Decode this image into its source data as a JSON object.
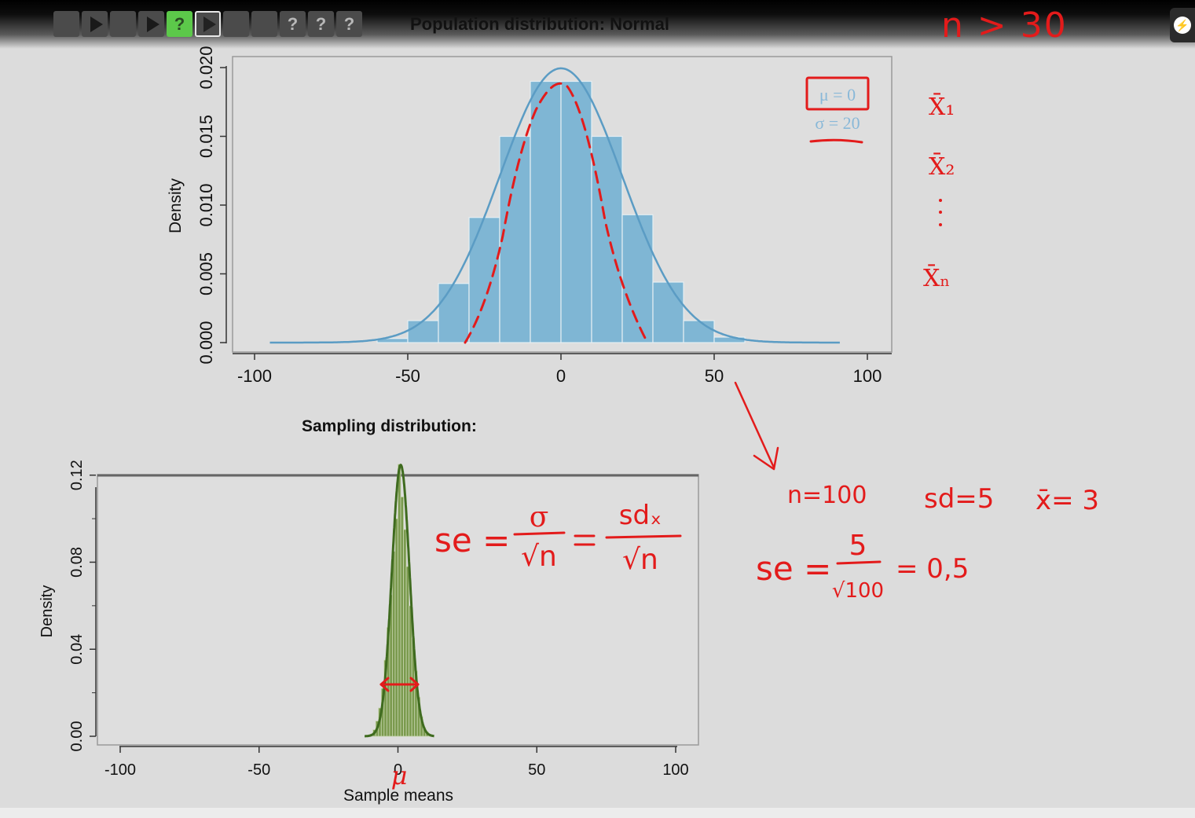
{
  "title": "Population distribution: Normal",
  "toolbar": {
    "buttons": [
      {
        "icon": "blank-icon"
      },
      {
        "icon": "play-icon"
      },
      {
        "icon": "blank-icon"
      },
      {
        "icon": "play-icon"
      },
      {
        "icon": "help-icon",
        "label": "?",
        "state": "active-green"
      },
      {
        "icon": "play-icon",
        "state": "outlined"
      },
      {
        "icon": "blank-icon"
      },
      {
        "icon": "blank-icon"
      },
      {
        "icon": "help-icon",
        "label": "?"
      },
      {
        "icon": "help-icon",
        "label": "?"
      },
      {
        "icon": "help-icon",
        "label": "?"
      }
    ]
  },
  "colors": {
    "population_bars": "#7fb6d4",
    "population_curve": "#5b9cc4",
    "sampling_bars": "#7a9a4e",
    "sampling_curve": "#3f6b1f",
    "annotation": "#e31b1b",
    "background": "#dcdcdc"
  },
  "sampling_title": "Sampling distribution:",
  "chart_data": [
    {
      "type": "bar",
      "title": "Population distribution: Normal",
      "xlabel": "",
      "ylabel": "Density",
      "xlim": [
        -100,
        100
      ],
      "ylim": [
        0,
        0.02
      ],
      "x_ticks": [
        "-100",
        "-50",
        "0",
        "50",
        "100"
      ],
      "y_ticks": [
        "0.000",
        "0.005",
        "0.010",
        "0.015",
        "0.020"
      ],
      "bin_edges": [
        -60,
        -50,
        -40,
        -30,
        -20,
        -10,
        0,
        10,
        20,
        30,
        40,
        50,
        60
      ],
      "values": [
        0.0003,
        0.0016,
        0.0043,
        0.0091,
        0.015,
        0.019,
        0.019,
        0.015,
        0.0093,
        0.0044,
        0.0016,
        0.0004
      ],
      "density_curve": {
        "mean": 0,
        "sd": 20
      },
      "legend": [
        "μ = 0",
        "σ = 20"
      ]
    },
    {
      "type": "bar",
      "title": "",
      "xlabel": "Sample means",
      "ylabel": "Density",
      "xlim": [
        -100,
        100
      ],
      "ylim": [
        0,
        0.13
      ],
      "x_ticks": [
        "-100",
        "-50",
        "0",
        "50",
        "100"
      ],
      "y_ticks": [
        "0.00",
        "0.04",
        "0.08",
        "0.12"
      ],
      "bin_edges": [
        -10,
        -9,
        -8,
        -7,
        -6,
        -5,
        -4,
        -3,
        -2,
        -1,
        0,
        1,
        2,
        3,
        4,
        5,
        6,
        7,
        8,
        9,
        10,
        11,
        12
      ],
      "values": [
        0.001,
        0.003,
        0.007,
        0.013,
        0.022,
        0.035,
        0.05,
        0.065,
        0.085,
        0.1,
        0.125,
        0.11,
        0.095,
        0.078,
        0.06,
        0.045,
        0.03,
        0.018,
        0.009,
        0.004,
        0.002,
        0.001
      ],
      "density_curve": {
        "mean": 1,
        "sd": 3.2
      }
    }
  ],
  "handwriting": {
    "n_condition": "n > 30",
    "xbar1": "X̄₁",
    "xbar2": "X̄₂",
    "xbar_n": "X̄ₙ",
    "n_value": "n=100",
    "sd_value": "sd=5",
    "xbar_value": "x̄= 3",
    "se_general_lhs": "se =",
    "se_general_num1": "σ",
    "se_general_den": "√n",
    "se_general_num2": "sdₓ",
    "se_calc_lhs": "se =",
    "se_calc_num": "5",
    "se_calc_den": "√100",
    "se_calc_result": "= 0,5",
    "mu_label": "μ"
  }
}
